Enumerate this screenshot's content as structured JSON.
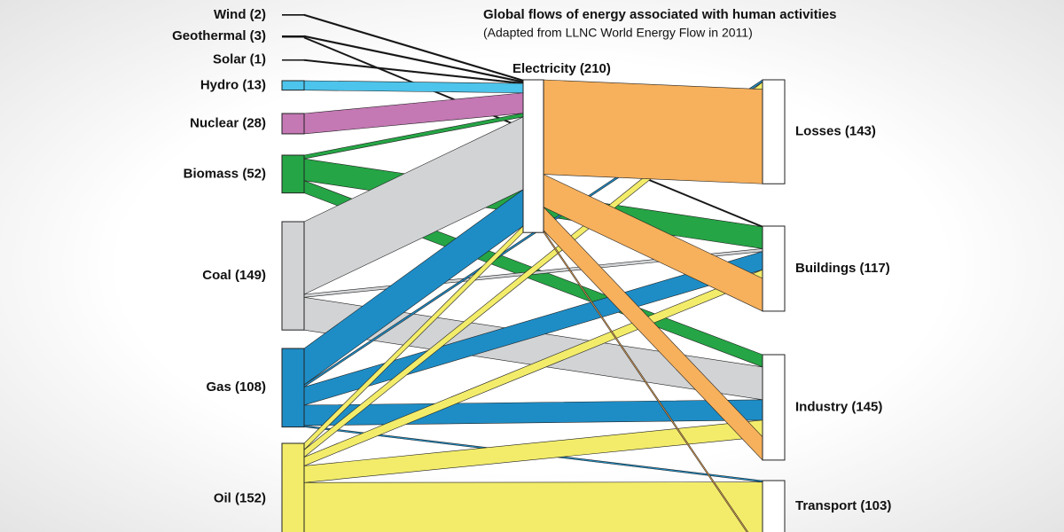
{
  "chart_data": {
    "type": "sankey",
    "title": "Global flows of energy associated with human activities",
    "subtitle": "(Adapted from LLNC World Energy Flow in 2011)",
    "nodes": [
      {
        "label": "Wind (2)",
        "value": 2,
        "color": "#111111"
      },
      {
        "label": "Geothermal (3)",
        "value": 3,
        "color": "#111111"
      },
      {
        "label": "Solar (1)",
        "value": 1,
        "color": "#111111"
      },
      {
        "label": "Hydro (13)",
        "value": 13,
        "color": "#4cc4ec"
      },
      {
        "label": "Nuclear (28)",
        "value": 28,
        "color": "#c478b4"
      },
      {
        "label": "Biomass (52)",
        "value": 52,
        "color": "#25a545"
      },
      {
        "label": "Coal (149)",
        "value": 149,
        "color": "#d1d3d5"
      },
      {
        "label": "Gas (108)",
        "value": 108,
        "color": "#1e8dc6"
      },
      {
        "label": "Oil (152)",
        "value": 152,
        "color": "#f2ec6a"
      },
      {
        "label": "Electricity (210)",
        "value": 210,
        "color": "#f7b05b"
      },
      {
        "label": "Losses (143)",
        "value": 143
      },
      {
        "label": "Buildings (117)",
        "value": 117
      },
      {
        "label": "Industry (145)",
        "value": 145
      },
      {
        "label": "Transport (103)",
        "value": 103
      }
    ],
    "links": [
      {
        "source": 0,
        "target": 9,
        "value": 2
      },
      {
        "source": 1,
        "target": 9,
        "value": 2
      },
      {
        "source": 1,
        "target": 11,
        "value": 1
      },
      {
        "source": 2,
        "target": 9,
        "value": 1
      },
      {
        "source": 3,
        "target": 9,
        "value": 13
      },
      {
        "source": 4,
        "target": 9,
        "value": 28
      },
      {
        "source": 5,
        "target": 9,
        "value": 5
      },
      {
        "source": 5,
        "target": 11,
        "value": 30
      },
      {
        "source": 5,
        "target": 12,
        "value": 17
      },
      {
        "source": 6,
        "target": 9,
        "value": 100
      },
      {
        "source": 6,
        "target": 11,
        "value": 4
      },
      {
        "source": 6,
        "target": 12,
        "value": 45
      },
      {
        "source": 7,
        "target": 9,
        "value": 50
      },
      {
        "source": 7,
        "target": 10,
        "value": 3
      },
      {
        "source": 7,
        "target": 11,
        "value": 25
      },
      {
        "source": 7,
        "target": 12,
        "value": 28
      },
      {
        "source": 7,
        "target": 13,
        "value": 2
      },
      {
        "source": 8,
        "target": 9,
        "value": 9
      },
      {
        "source": 8,
        "target": 10,
        "value": 10
      },
      {
        "source": 8,
        "target": 11,
        "value": 12
      },
      {
        "source": 8,
        "target": 12,
        "value": 23
      },
      {
        "source": 8,
        "target": 13,
        "value": 98
      },
      {
        "source": 9,
        "target": 10,
        "value": 130
      },
      {
        "source": 9,
        "target": 11,
        "value": 45
      },
      {
        "source": 9,
        "target": 12,
        "value": 32
      },
      {
        "source": 9,
        "target": 13,
        "value": 3
      }
    ]
  }
}
